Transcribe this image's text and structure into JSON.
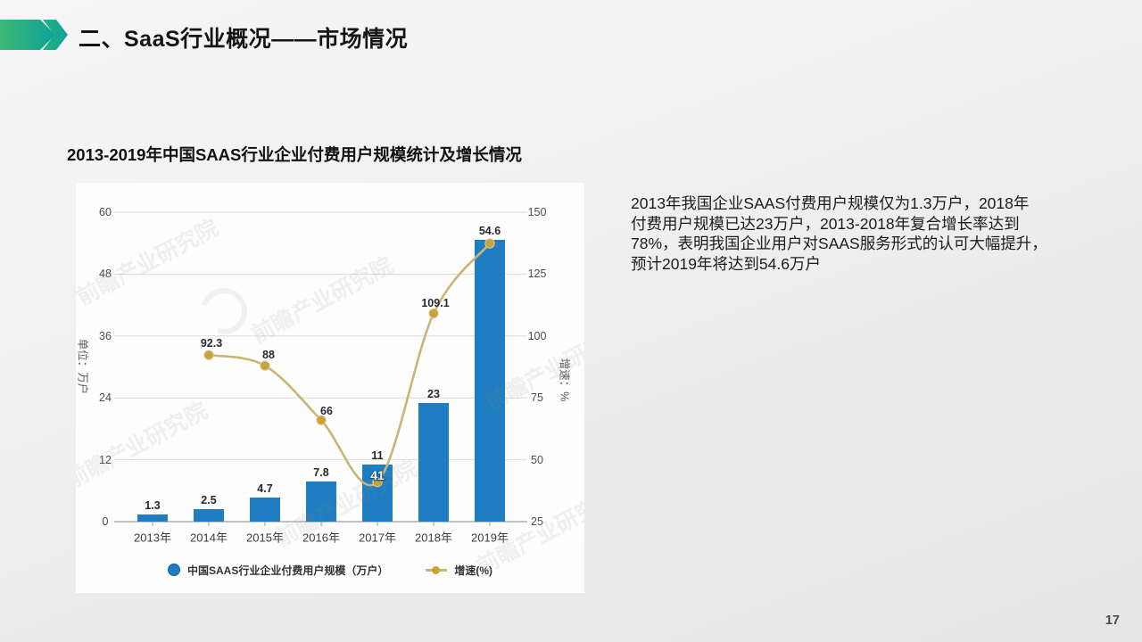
{
  "header": {
    "title": "二、SaaS行业概况——市场情况"
  },
  "commentary": {
    "lines": [
      "2013年我国企业SAAS付费用户规模仅为1.3万户，2018年",
      "付费用户规模已达23万户，2013-2018年复合增长率达到",
      "78%，表明我国企业用户对SAAS服务形式的认可大幅提升，",
      "预计2019年将达到54.6万户"
    ]
  },
  "watermark": {
    "text": "前瞻产业研究院"
  },
  "page": {
    "number": "17"
  },
  "colors": {
    "bar": "#1e7ec1",
    "line": "#c9b575",
    "line_marker": "#c7a23e",
    "accent_green": "#3bb873",
    "accent_teal": "#0fa298",
    "grid": "#dcdcdc",
    "axis": "#9f9f9f",
    "text_dark": "#1b1b1b",
    "label": "#28282e"
  },
  "chart_data": {
    "type": "bar+line",
    "title": "2013-2019年中国SAAS行业企业付费用户规模统计及增长情况",
    "categories": [
      "2013年",
      "2014年",
      "2015年",
      "2016年",
      "2017年",
      "2018年",
      "2019年"
    ],
    "series": [
      {
        "name": "中国SAAS行业企业付费用户规模（万户）",
        "type": "bar",
        "axis": "left",
        "color": "#1e7ec1",
        "values": [
          1.3,
          2.5,
          4.7,
          7.8,
          11,
          23,
          54.6
        ],
        "labels": [
          "1.3",
          "2.5",
          "4.7",
          "7.8",
          "11",
          "23",
          "54.6"
        ]
      },
      {
        "name": "增速(%)",
        "type": "line",
        "axis": "right",
        "color": "#c9b575",
        "marker_color": "#c7a23e",
        "values": [
          null,
          92.3,
          88,
          66,
          41,
          109.1,
          137.4
        ],
        "labels": [
          null,
          "92.3",
          "88",
          "66",
          "41",
          "109.1",
          null
        ],
        "label_styles": [
          null,
          "dark",
          "dark",
          "dark",
          "light",
          "dark",
          null
        ]
      }
    ],
    "left_axis": {
      "title": "单位：万户",
      "ticks": [
        0,
        12,
        24,
        36,
        48,
        60
      ],
      "range": [
        0,
        60
      ]
    },
    "right_axis": {
      "title": "增速：%",
      "ticks": [
        25,
        50,
        75,
        100,
        125,
        150
      ],
      "range": [
        25,
        150
      ]
    },
    "legend_position": "bottom",
    "grid": true
  }
}
